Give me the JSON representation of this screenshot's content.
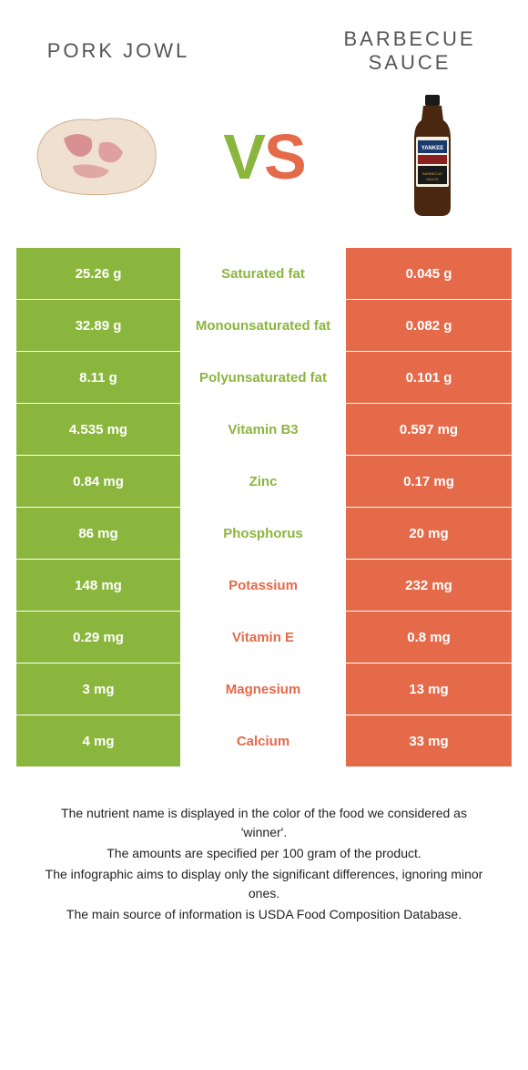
{
  "colors": {
    "green": "#8bb63e",
    "orange": "#e46a4a",
    "text_gray": "#555555"
  },
  "left": {
    "title": "Pork jowl"
  },
  "right": {
    "title": "Barbecue sauce"
  },
  "vs": "VS",
  "rows": [
    {
      "label": "Saturated fat",
      "left": "25.26 g",
      "right": "0.045 g",
      "winner": "left"
    },
    {
      "label": "Monounsaturated fat",
      "left": "32.89 g",
      "right": "0.082 g",
      "winner": "left"
    },
    {
      "label": "Polyunsaturated fat",
      "left": "8.11 g",
      "right": "0.101 g",
      "winner": "left"
    },
    {
      "label": "Vitamin B3",
      "left": "4.535 mg",
      "right": "0.597 mg",
      "winner": "left"
    },
    {
      "label": "Zinc",
      "left": "0.84 mg",
      "right": "0.17 mg",
      "winner": "left"
    },
    {
      "label": "Phosphorus",
      "left": "86 mg",
      "right": "20 mg",
      "winner": "left"
    },
    {
      "label": "Potassium",
      "left": "148 mg",
      "right": "232 mg",
      "winner": "right"
    },
    {
      "label": "Vitamin E",
      "left": "0.29 mg",
      "right": "0.8 mg",
      "winner": "right"
    },
    {
      "label": "Magnesium",
      "left": "3 mg",
      "right": "13 mg",
      "winner": "right"
    },
    {
      "label": "Calcium",
      "left": "4 mg",
      "right": "33 mg",
      "winner": "right"
    }
  ],
  "footer": {
    "line1": "The nutrient name is displayed in the color of the food we considered as 'winner'.",
    "line2": "The amounts are specified per 100 gram of the product.",
    "line3": "The infographic aims to display only the significant differences, ignoring minor ones.",
    "line4": "The main source of information is USDA Food Composition Database."
  }
}
